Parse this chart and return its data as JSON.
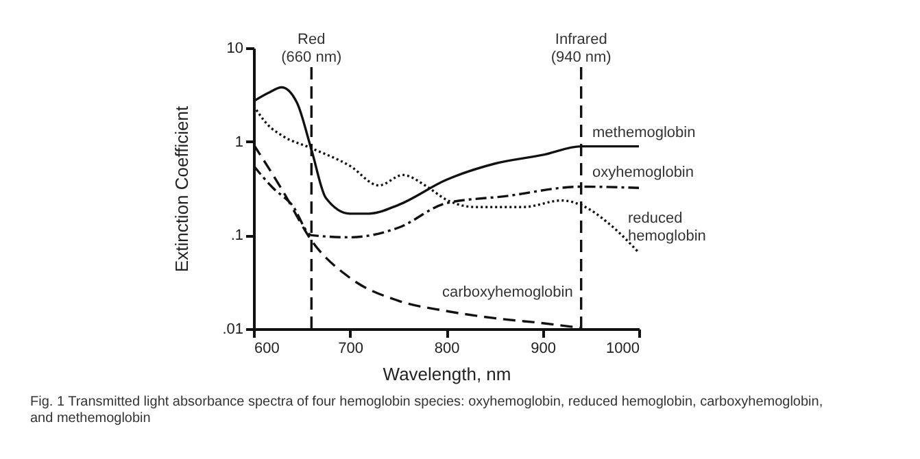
{
  "chart_data": {
    "type": "line",
    "xlabel": "Wavelength, nm",
    "ylabel": "Extinction Coefficient",
    "log": true,
    "grid": false,
    "legend": false,
    "xlim": [
      600,
      1000
    ],
    "xticks": [
      600,
      700,
      800,
      900,
      {
        "value": 1000,
        "label": "1000"
      }
    ],
    "ylim": [
      0.01,
      10
    ],
    "yticks": [
      {
        "value": 0.01,
        "label": ".01"
      },
      {
        "value": 0.1,
        "label": ".1"
      },
      1,
      10
    ],
    "series": [
      {
        "name": "methemoglobin",
        "color": "#111111",
        "line_style": "solid",
        "x": [
          600,
          615,
          629,
          645,
          660,
          675,
          700,
          720,
          750,
          800,
          850,
          900,
          940,
          1000
        ],
        "values": [
          2.7,
          3.3,
          3.8,
          2.6,
          0.82,
          0.25,
          0.17,
          0.17,
          0.21,
          0.39,
          0.58,
          0.72,
          0.89,
          0.89
        ]
      },
      {
        "name": "reduced hemoglobin",
        "color": "#111111",
        "line_style": "dotted",
        "x": [
          600,
          615,
          630,
          660,
          700,
          730,
          755,
          780,
          800,
          830,
          880,
          920,
          940,
          970,
          1000
        ],
        "values": [
          2.4,
          1.5,
          1.15,
          0.85,
          0.55,
          0.34,
          0.44,
          0.33,
          0.24,
          0.2,
          0.2,
          0.235,
          0.21,
          0.13,
          0.065
        ]
      },
      {
        "name": "oxyhemoglobin",
        "color": "#111111",
        "line_style": "dashdot",
        "x": [
          600,
          620,
          640,
          660,
          700,
          750,
          800,
          860,
          940,
          1000
        ],
        "values": [
          0.55,
          0.32,
          0.21,
          0.1,
          0.095,
          0.12,
          0.22,
          0.26,
          0.33,
          0.32
        ]
      },
      {
        "name": "carboxyhemoglobin",
        "color": "#111111",
        "line_style": "dashed",
        "x": [
          600,
          630,
          660,
          700,
          750,
          800,
          850,
          900,
          940
        ],
        "values": [
          0.93,
          0.3,
          0.088,
          0.035,
          0.02,
          0.0155,
          0.013,
          0.0115,
          0.0102
        ]
      }
    ],
    "ref_lines": [
      {
        "axis": "x",
        "value": 660,
        "label": "Red\n(660 nm)",
        "line_style": "dashed",
        "color": "#111111"
      },
      {
        "axis": "x",
        "value": 940,
        "label": "Infrared\n(940 nm)",
        "line_style": "dashed",
        "color": "#111111"
      }
    ],
    "annotations": [
      "Fig. 1 Transmitted light absorbance spectra of four hemoglobin species: oxyhemoglobin, reduced hemoglobin, carboxyhemoglobin, and methemoglobin"
    ]
  }
}
